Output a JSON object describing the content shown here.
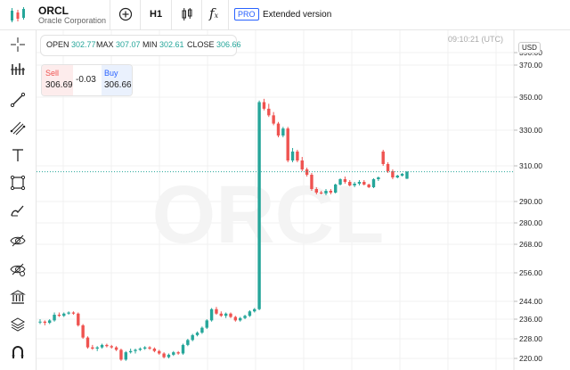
{
  "header": {
    "symbol": "ORCL",
    "company": "Oracle Corporation",
    "add_icon": "plus-circle-icon",
    "timeframe": "H1",
    "candles_icon": "candlestick-icon",
    "indicators_icon": "fx-icon",
    "pro_badge": "PRO",
    "extended_label": "Extended version"
  },
  "tools": [
    {
      "name": "crosshair-icon"
    },
    {
      "name": "indicators-bars-icon"
    },
    {
      "name": "trend-line-icon"
    },
    {
      "name": "fib-tool-icon"
    },
    {
      "name": "text-tool-icon"
    },
    {
      "name": "rectangle-tool-icon"
    },
    {
      "name": "brush-tool-icon"
    },
    {
      "name": "eye-crossed-icon"
    },
    {
      "name": "eye-crossed-2-icon"
    },
    {
      "name": "bank-icon"
    },
    {
      "name": "layers-icon"
    },
    {
      "name": "magnet-icon"
    }
  ],
  "ohlc": {
    "open_label": "OPEN",
    "open": "302.77",
    "max_label": "MAX",
    "max": "307.07",
    "min_label": "MIN",
    "min": "302.61",
    "close_label": "CLOSE",
    "close": "306.66"
  },
  "trade": {
    "sell_label": "Sell",
    "sell": "306.69",
    "spread": "-0.03",
    "buy_label": "Buy",
    "buy": "306.66"
  },
  "time_readout": "09:10:21 (UTC)",
  "currency": "USD",
  "watermark": "ORCL",
  "colors": {
    "up": "#26a69a",
    "down": "#ef5350",
    "sell": "#ef5350",
    "buy": "#2962ff"
  },
  "chart_data": {
    "type": "candlestick",
    "y_ticks": [
      "390.00",
      "370.00",
      "350.00",
      "330.00",
      "310.00",
      "290.00",
      "280.00",
      "268.00",
      "256.00",
      "244.00",
      "236.00",
      "228.00",
      "220.00"
    ],
    "tick_values": [
      390,
      370,
      350,
      330,
      310,
      290,
      280,
      268,
      256,
      244,
      236,
      228,
      220
    ],
    "current_price": 306.66,
    "candles": [
      [
        235,
        236,
        234,
        235
      ],
      [
        235,
        235.5,
        233.5,
        234.5
      ],
      [
        234.5,
        236,
        234,
        235.5
      ],
      [
        235.5,
        239,
        235,
        238
      ],
      [
        238,
        239,
        237,
        237.5
      ],
      [
        237.5,
        239,
        237,
        238.5
      ],
      [
        238.5,
        239.5,
        238,
        239
      ],
      [
        239,
        239.5,
        238,
        238.5
      ],
      [
        238.5,
        239,
        233,
        233.5
      ],
      [
        233.5,
        234,
        228,
        228.5
      ],
      [
        228.5,
        229,
        224,
        224.5
      ],
      [
        224.5,
        225.5,
        223.5,
        224
      ],
      [
        224,
        225,
        223,
        224.5
      ],
      [
        224.5,
        226,
        224,
        225.5
      ],
      [
        225.5,
        226,
        224.5,
        225
      ],
      [
        225,
        225.5,
        224,
        224.5
      ],
      [
        224.5,
        225,
        223,
        223.5
      ],
      [
        223.5,
        224,
        219,
        219.5
      ],
      [
        219.5,
        223,
        219,
        222.5
      ],
      [
        222.5,
        224,
        222,
        223
      ],
      [
        223,
        224,
        222,
        223.5
      ],
      [
        223.5,
        224.5,
        223,
        224
      ],
      [
        224,
        225,
        223.5,
        224.5
      ],
      [
        224.5,
        225,
        223.5,
        224
      ],
      [
        224,
        224.5,
        222.5,
        223
      ],
      [
        223,
        223.5,
        221.5,
        222
      ],
      [
        222,
        222.5,
        220,
        220.5
      ],
      [
        220.5,
        222,
        220,
        221.5
      ],
      [
        221.5,
        223,
        221,
        222.5
      ],
      [
        222.5,
        223,
        221.5,
        222
      ],
      [
        222,
        226,
        221.5,
        225.5
      ],
      [
        225.5,
        228,
        225,
        227.5
      ],
      [
        227.5,
        230,
        227,
        229.5
      ],
      [
        229.5,
        231,
        229,
        230.5
      ],
      [
        230.5,
        233,
        230,
        232.5
      ],
      [
        232.5,
        236,
        232,
        235.5
      ],
      [
        235.5,
        241,
        235,
        240.5
      ],
      [
        240.5,
        241.5,
        238,
        238.5
      ],
      [
        238.5,
        239.5,
        237,
        237.5
      ],
      [
        237.5,
        239,
        236.5,
        238.5
      ],
      [
        238.5,
        239,
        236.5,
        237
      ],
      [
        237,
        237.5,
        235,
        235.5
      ],
      [
        235.5,
        237,
        235,
        236.5
      ],
      [
        236.5,
        238,
        236,
        237.5
      ],
      [
        237.5,
        240,
        237,
        239.5
      ],
      [
        239.5,
        241,
        239,
        240.5
      ],
      [
        240.5,
        348,
        240,
        347
      ],
      [
        347,
        349,
        342,
        343
      ],
      [
        343,
        346,
        338,
        339
      ],
      [
        339,
        341,
        333,
        334
      ],
      [
        334,
        335,
        326,
        327
      ],
      [
        327,
        332,
        326,
        331
      ],
      [
        331,
        332,
        312,
        313
      ],
      [
        313,
        320,
        312,
        318
      ],
      [
        318,
        319,
        312,
        313
      ],
      [
        313,
        315,
        307,
        308
      ],
      [
        308,
        309,
        304,
        305
      ],
      [
        305,
        306,
        296,
        297
      ],
      [
        297,
        298,
        294,
        295
      ],
      [
        295,
        296,
        294,
        294.5
      ],
      [
        294.5,
        297,
        293.5,
        296
      ],
      [
        296,
        297,
        294,
        295
      ],
      [
        295,
        300,
        294.5,
        299.5
      ],
      [
        299.5,
        303,
        299,
        302.5
      ],
      [
        302.5,
        304,
        300,
        301
      ],
      [
        301,
        302,
        298.5,
        299
      ],
      [
        299,
        301,
        298,
        300
      ],
      [
        300,
        302,
        299,
        301
      ],
      [
        301,
        302,
        299,
        299.5
      ],
      [
        299.5,
        300,
        297.5,
        298
      ],
      [
        298,
        303,
        297.5,
        302.5
      ],
      [
        302.5,
        304,
        301.5,
        303.5
      ],
      [
        318,
        319,
        310,
        311
      ],
      [
        311,
        312,
        306,
        307
      ],
      [
        307,
        308,
        302.5,
        303.5
      ],
      [
        303.5,
        305,
        303,
        304.5
      ],
      [
        304.5,
        306,
        304,
        305.5
      ],
      [
        302.77,
        307.07,
        302.61,
        306.66
      ]
    ]
  }
}
